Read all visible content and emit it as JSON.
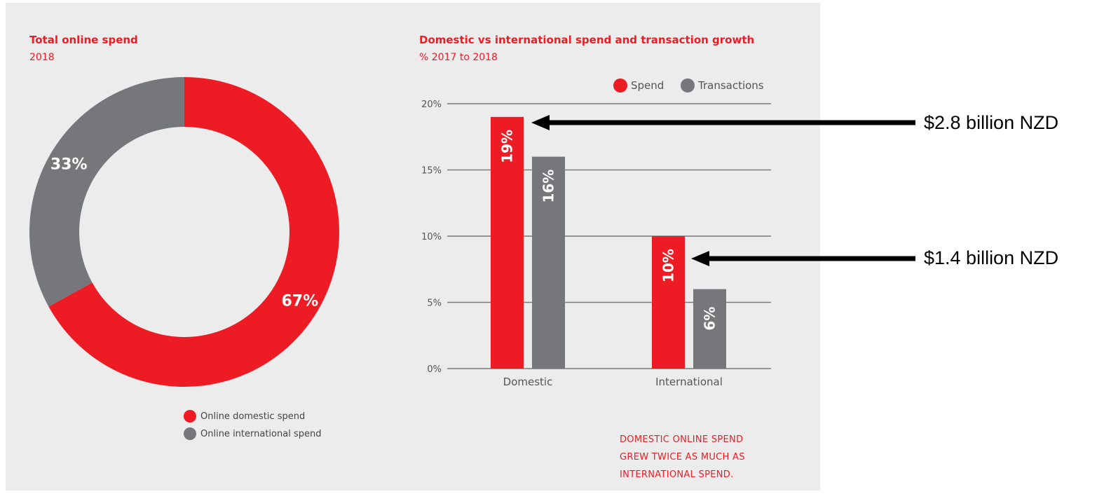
{
  "colors": {
    "spend": "#ed1c24",
    "transactions": "#76777b",
    "panel_bg": "#ececec",
    "accent_text": "#ed1c24",
    "arrow": "#000000"
  },
  "chart_data": [
    {
      "type": "pie",
      "title": "Total online spend",
      "subtitle": "2018",
      "donut": true,
      "slices": [
        {
          "name": "Online domestic spend",
          "value": 67,
          "label": "67%",
          "color": "#ed1c24"
        },
        {
          "name": "Online international spend",
          "value": 33,
          "label": "33%",
          "color": "#76777b"
        }
      ],
      "legend_position": "bottom"
    },
    {
      "type": "bar",
      "title": "Domestic vs international spend and transaction growth",
      "subtitle": "% 2017 to 2018",
      "categories": [
        "Domestic",
        "International"
      ],
      "series": [
        {
          "name": "Spend",
          "values": [
            19,
            10
          ],
          "labels": [
            "19%",
            "10%"
          ],
          "color": "#ed1c24"
        },
        {
          "name": "Transactions",
          "values": [
            16,
            6
          ],
          "labels": [
            "16%",
            "6%"
          ],
          "color": "#76777b"
        }
      ],
      "ylim": [
        0,
        20
      ],
      "yticks": [
        0,
        5,
        10,
        15,
        20
      ],
      "ytick_labels": [
        "0%",
        "5%",
        "10%",
        "15%",
        "20%"
      ],
      "grid": true,
      "legend_position": "top-right"
    }
  ],
  "legend_pie": [
    {
      "label": "Online domestic spend",
      "color": "#ed1c24"
    },
    {
      "label": "Online international spend",
      "color": "#76777b"
    }
  ],
  "callout": {
    "lines": [
      "DOMESTIC ONLINE SPEND",
      "GREW TWICE AS MUCH AS",
      "INTERNATIONAL SPEND."
    ]
  },
  "annotations": [
    {
      "text": "$2.8 billion NZD",
      "points_to": "Domestic Spend"
    },
    {
      "text": "$1.4 billion NZD",
      "points_to": "International Spend"
    }
  ]
}
